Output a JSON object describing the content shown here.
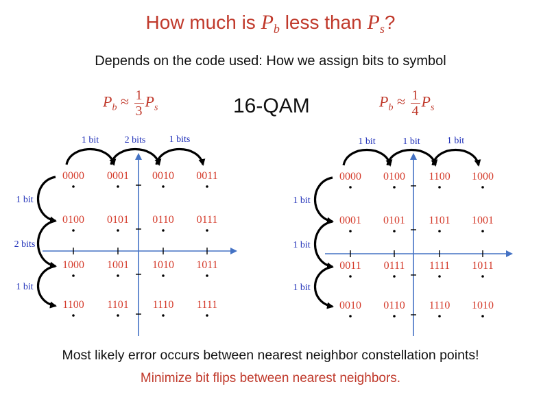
{
  "title": {
    "prefix": "How much is",
    "pb_symbol": "P",
    "pb_sub": "b",
    "middle": "less than",
    "ps_symbol": "P",
    "ps_sub": "s",
    "suffix": "?"
  },
  "subtitle": "Depends on the code used: How we assign bits to symbol",
  "scheme_label": "16-QAM",
  "left": {
    "formula": {
      "lhs": "P",
      "lhs_sub": "b",
      "approx": "≈",
      "num": "1",
      "den": "3",
      "rhs": "P",
      "rhs_sub": "s"
    },
    "grid": [
      [
        "0000",
        "0001",
        "0010",
        "0011"
      ],
      [
        "0100",
        "0101",
        "0110",
        "0111"
      ],
      [
        "1000",
        "1001",
        "1010",
        "1011"
      ],
      [
        "1100",
        "1101",
        "1110",
        "1111"
      ]
    ],
    "top_labels": [
      "1 bit",
      "2 bits",
      "1 bits"
    ],
    "side_labels": [
      "1 bit",
      "2 bits",
      "1 bit"
    ]
  },
  "right": {
    "formula": {
      "lhs": "P",
      "lhs_sub": "b",
      "approx": "≈",
      "num": "1",
      "den": "4",
      "rhs": "P",
      "rhs_sub": "s"
    },
    "grid": [
      [
        "0000",
        "0100",
        "1100",
        "1000"
      ],
      [
        "0001",
        "0101",
        "1101",
        "1001"
      ],
      [
        "0011",
        "0111",
        "1111",
        "1011"
      ],
      [
        "0010",
        "0110",
        "1110",
        "1010"
      ]
    ],
    "top_labels": [
      "1 bit",
      "1 bit",
      "1 bit"
    ],
    "side_labels": [
      "1 bit",
      "1 bit",
      "1 bit"
    ]
  },
  "footer": {
    "line1": "Most likely error occurs between nearest neighbor constellation points!",
    "line2": "Minimize bit flips between nearest neighbors."
  },
  "colors": {
    "accent_red": "#c0392b",
    "code_red": "#d43a2a",
    "label_blue": "#1f2fb8",
    "axis_blue": "#4472c4"
  }
}
